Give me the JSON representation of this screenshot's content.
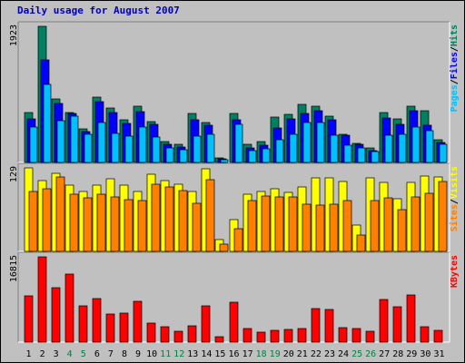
{
  "chart_data": {
    "type": "bar",
    "title": "Daily usage for August 2007",
    "categories": [
      "1",
      "2",
      "3",
      "4",
      "5",
      "6",
      "7",
      "8",
      "9",
      "10",
      "11",
      "12",
      "13",
      "14",
      "15",
      "16",
      "17",
      "18",
      "19",
      "20",
      "21",
      "22",
      "23",
      "24",
      "25",
      "26",
      "27",
      "28",
      "29",
      "30",
      "31"
    ],
    "weekend_days": [
      "4",
      "5",
      "11",
      "12",
      "18",
      "19",
      "25",
      "26"
    ],
    "weekday_label_color": "#000000",
    "weekend_label_color": "#008040",
    "panels": [
      {
        "id": "hits",
        "ymax": 1923,
        "ymax_label": "1923",
        "legend": [
          {
            "text": "Pages",
            "color": "#00c0ff"
          },
          {
            "text": "/",
            "color": "#000000"
          },
          {
            "text": "Files",
            "color": "#0000ff"
          },
          {
            "text": "/",
            "color": "#000000"
          },
          {
            "text": "Hits",
            "color": "#008060"
          }
        ],
        "series": [
          {
            "name": "Hits",
            "color": "#008060",
            "values": [
              700,
              1923,
              900,
              700,
              470,
              920,
              770,
              600,
              800,
              580,
              290,
              250,
              690,
              570,
              60,
              690,
              250,
              290,
              640,
              680,
              820,
              800,
              660,
              400,
              270,
              200,
              700,
              610,
              800,
              730,
              320
            ]
          },
          {
            "name": "Files",
            "color": "#0000ff",
            "values": [
              620,
              1450,
              830,
              690,
              430,
              860,
              700,
              550,
              720,
              540,
              250,
              220,
              600,
              530,
              45,
              600,
              210,
              240,
              490,
              620,
              690,
              730,
              600,
              380,
              250,
              170,
              630,
              540,
              730,
              520,
              280
            ]
          },
          {
            "name": "Pages",
            "color": "#00c0ff",
            "values": [
              500,
              1100,
              590,
              660,
              400,
              570,
              410,
              370,
              500,
              360,
              200,
              180,
              370,
              400,
              35,
              540,
              170,
              190,
              320,
              400,
              560,
              560,
              390,
              240,
              200,
              150,
              380,
              400,
              500,
              450,
              250
            ]
          }
        ]
      },
      {
        "id": "visits",
        "ymax": 129,
        "ymax_label": "129",
        "legend": [
          {
            "text": "Sites",
            "color": "#ff8000"
          },
          {
            "text": "/",
            "color": "#000000"
          },
          {
            "text": "Visits",
            "color": "#ffff00"
          }
        ],
        "series": [
          {
            "name": "Visits",
            "color": "#ffff00",
            "values": [
              129,
              109,
              120,
              102,
              93,
              102,
              112,
              102,
              93,
              119,
              109,
              104,
              92,
              128,
              18,
              49,
              89,
              92,
              97,
              91,
              99,
              113,
              113,
              108,
              41,
              113,
              107,
              81,
              107,
              116,
              115
            ]
          },
          {
            "name": "Sites",
            "color": "#ff8000",
            "values": [
              92,
              97,
              115,
              88,
              83,
              88,
              84,
              80,
              79,
              104,
              99,
              94,
              74,
              111,
              11,
              35,
              78,
              85,
              84,
              84,
              73,
              71,
              73,
              79,
              25,
              79,
              83,
              65,
              84,
              90,
              108
            ]
          }
        ]
      },
      {
        "id": "kbytes",
        "ymax": 16815,
        "ymax_label": "16815",
        "legend": [
          {
            "text": "KBytes",
            "color": "#ff0000"
          }
        ],
        "series": [
          {
            "name": "KBytes",
            "color": "#ff0000",
            "values": [
              9100,
              16815,
              10800,
              13400,
              7100,
              8500,
              5600,
              5800,
              8100,
              3800,
              3100,
              2200,
              3300,
              7100,
              1000,
              7800,
              2600,
              2000,
              2300,
              2500,
              2600,
              6700,
              6500,
              2800,
              2600,
              2200,
              8400,
              6900,
              9300,
              3100,
              2400
            ]
          }
        ]
      }
    ]
  }
}
